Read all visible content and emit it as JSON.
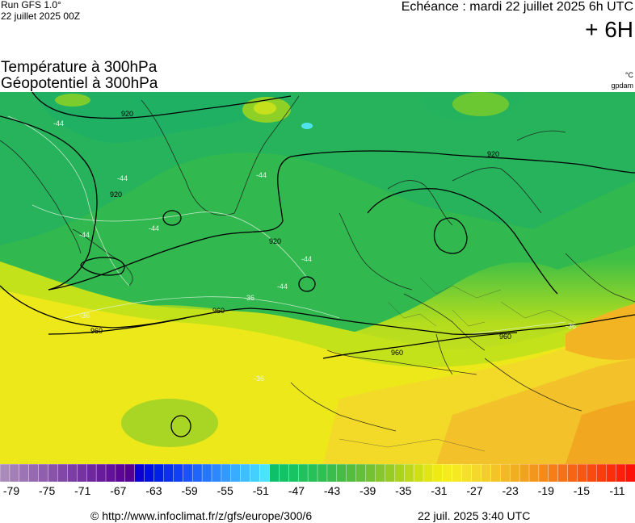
{
  "header": {
    "run_label": "Run GFS 1.0°",
    "run_date": "22 juillet 2025 00Z",
    "echeance": "Echéance : mardi 22 juillet 2025 6h UTC",
    "lead_time": "+ 6H"
  },
  "titles": {
    "line1": "Température à 300hPa",
    "line2": "Géopotentiel à 300hPa",
    "unit1": "°C",
    "unit2": "gpdam"
  },
  "map": {
    "contour_labels": {
      "geopotential": [
        "920",
        "920",
        "920",
        "920",
        "960",
        "960",
        "960",
        "960"
      ],
      "temperature": [
        "-44",
        "-44",
        "-44",
        "-44",
        "-44",
        "-44",
        "-44",
        "-36",
        "-36",
        "-36",
        "-36"
      ]
    },
    "colors": {
      "ocean_cold_green": "#27b856",
      "mid_green": "#4fc33b",
      "yellow_green": "#b6df1c",
      "warm_yellow": "#f2e91c",
      "orange": "#f3b717"
    }
  },
  "legend": {
    "ticks": [
      "-79",
      "-75",
      "-71",
      "-67",
      "-63",
      "-59",
      "-55",
      "-51",
      "-47",
      "-43",
      "-39",
      "-35",
      "-31",
      "-27",
      "-23",
      "-19",
      "-15",
      "-11"
    ],
    "colors": [
      "#a98ab8",
      "#a37fb6",
      "#9c74b3",
      "#9669b0",
      "#8f5ead",
      "#8953aa",
      "#8248a7",
      "#7c3da4",
      "#7532a1",
      "#6f279e",
      "#681c9b",
      "#621198",
      "#5b0695",
      "#550093",
      "#0a00d2",
      "#0010dc",
      "#0020e6",
      "#0a30ee",
      "#1040f4",
      "#1a52f8",
      "#2064fa",
      "#2676fb",
      "#2c88fc",
      "#329afd",
      "#38acfe",
      "#3ebeff",
      "#44d0ff",
      "#4ae2ff",
      "#0ec06a",
      "#12c466",
      "#18c462",
      "#1fc25c",
      "#26c157",
      "#2fbf52",
      "#3abd4c",
      "#47bc45",
      "#55bd3e",
      "#63bf37",
      "#74c231",
      "#86c72b",
      "#98cc25",
      "#aad21f",
      "#bcd81a",
      "#cfdf16",
      "#e1e514",
      "#eeea13",
      "#f4ec1b",
      "#f6e823",
      "#f5e12a",
      "#f4d82b",
      "#f3ce2a",
      "#f2c428",
      "#f1b925",
      "#f1ae22",
      "#f2a21f",
      "#f3961c",
      "#f48a1a",
      "#f57e18",
      "#f67216",
      "#f76514",
      "#f85712",
      "#f94a10",
      "#fa3c0e",
      "#fb2e0c",
      "#fc200a",
      "#fd1208"
    ]
  },
  "footer": {
    "source": "© http://www.infoclimat.fr/z/gfs/europe/300/6",
    "generated": "22 juil. 2025  3:40 UTC"
  }
}
